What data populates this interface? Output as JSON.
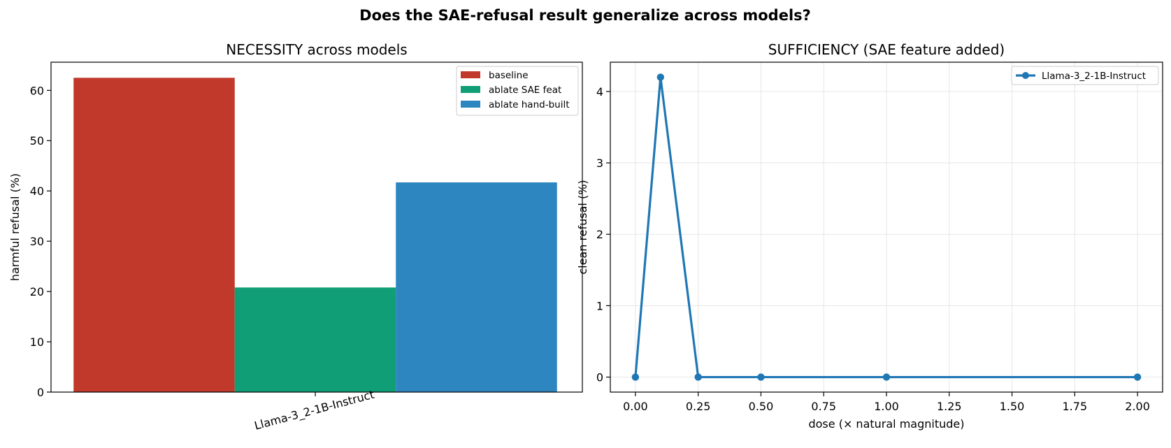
{
  "figure": {
    "suptitle": "Does the SAE-refusal result generalize across models?"
  },
  "chart_data": [
    {
      "type": "bar",
      "title": "NECESSITY across models",
      "xlabel": "",
      "ylabel": "harmful refusal (%)",
      "categories": [
        "Llama-3_2-1B-Instruct"
      ],
      "series": [
        {
          "name": "baseline",
          "values": [
            62.5
          ],
          "color": "#c0392b"
        },
        {
          "name": "ablate SAE feat",
          "values": [
            20.8
          ],
          "color": "#109e76"
        },
        {
          "name": "ablate hand-built",
          "values": [
            41.7
          ],
          "color": "#2e86c1"
        }
      ],
      "ylim": [
        0,
        65.6
      ],
      "yticks": [
        0,
        10,
        20,
        30,
        40,
        50,
        60
      ],
      "ytick_labels": [
        "0",
        "10",
        "20",
        "30",
        "40",
        "50",
        "60"
      ],
      "grid": false,
      "legend": "top-right",
      "xtick_rotation": 15
    },
    {
      "type": "line",
      "title": "SUFFICIENCY (SAE feature added)",
      "xlabel": "dose (× natural magnitude)",
      "ylabel": "clean refusal (%)",
      "series": [
        {
          "name": "Llama-3_2-1B-Instruct",
          "x": [
            0.0,
            0.1,
            0.25,
            0.5,
            1.0,
            2.0
          ],
          "y": [
            0.0,
            4.2,
            0.0,
            0.0,
            0.0,
            0.0
          ],
          "color": "#1f77b4",
          "marker": "circle"
        }
      ],
      "xlim": [
        -0.1,
        2.1
      ],
      "ylim": [
        -0.21,
        4.41
      ],
      "xticks": [
        0.0,
        0.25,
        0.5,
        0.75,
        1.0,
        1.25,
        1.5,
        1.75,
        2.0
      ],
      "xtick_labels": [
        "0.00",
        "0.25",
        "0.50",
        "0.75",
        "1.00",
        "1.25",
        "1.50",
        "1.75",
        "2.00"
      ],
      "yticks": [
        0,
        1,
        2,
        3,
        4
      ],
      "ytick_labels": [
        "0",
        "1",
        "2",
        "3",
        "4"
      ],
      "grid": true,
      "legend": "top-right"
    }
  ]
}
